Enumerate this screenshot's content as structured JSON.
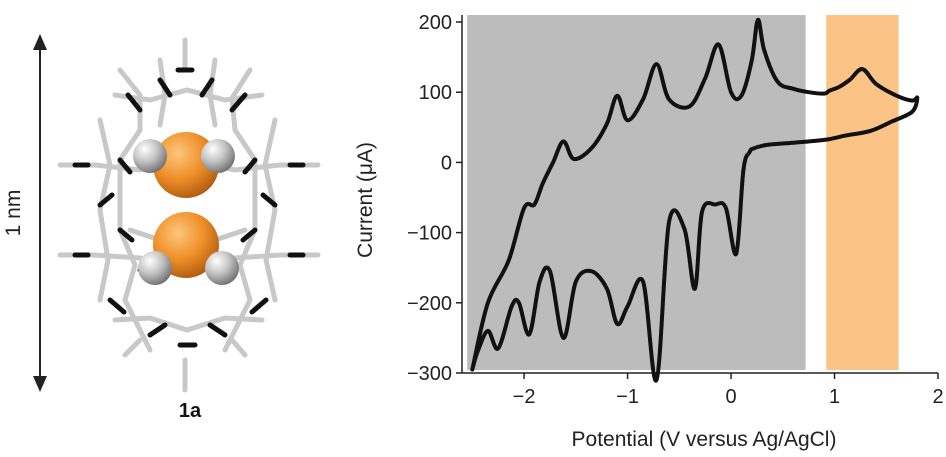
{
  "molecule": {
    "caption": "1a",
    "scale_label": "1 nm",
    "colors": {
      "metal": "#f0902a",
      "sphere": "#b8b8b8",
      "bond_dark": "#111111",
      "bond_light": "#c8c8c8"
    }
  },
  "chart_data": {
    "type": "line",
    "title": "",
    "xlabel": "Potential (V versus Ag/AgCl)",
    "ylabel": "Current (μA)",
    "xlim": [
      -2.6,
      2.0
    ],
    "ylim": [
      -300,
      210
    ],
    "xticks": [
      -2,
      -1,
      0,
      1,
      2
    ],
    "xtick_labels": [
      "−2",
      "−1",
      "0",
      "1",
      "2"
    ],
    "yticks": [
      -300,
      -200,
      -100,
      0,
      100,
      200
    ],
    "ytick_labels": [
      "−300",
      "−200",
      "−100",
      "0",
      "100",
      "200"
    ],
    "grid": false,
    "shaded_regions": [
      {
        "x": [
          -2.55,
          0.72
        ],
        "color": "#bcbcbc"
      },
      {
        "x": [
          0.92,
          1.62
        ],
        "color": "#fbc486"
      }
    ],
    "line_color": "#111111",
    "series": [
      {
        "values_desc": "cyclic voltammogram, closed loop",
        "x": [
          -2.5,
          -2.35,
          -2.15,
          -2.0,
          -1.9,
          -1.82,
          -1.72,
          -1.62,
          -1.52,
          -1.35,
          -1.2,
          -1.1,
          -1.0,
          -0.85,
          -0.72,
          -0.6,
          -0.4,
          -0.25,
          -0.12,
          0.0,
          0.1,
          0.2,
          0.26,
          0.32,
          0.45,
          0.6,
          0.75,
          0.9,
          0.95,
          1.05,
          1.15,
          1.27,
          1.4,
          1.6,
          1.75,
          1.8,
          1.75,
          1.55,
          1.35,
          1.1,
          0.9,
          0.6,
          0.35,
          0.22,
          0.18,
          0.12,
          0.05,
          -0.05,
          -0.15,
          -0.28,
          -0.35,
          -0.45,
          -0.6,
          -0.72,
          -0.85,
          -1.0,
          -1.1,
          -1.2,
          -1.35,
          -1.5,
          -1.62,
          -1.75,
          -1.85,
          -1.95,
          -2.05,
          -2.12,
          -2.25,
          -2.35,
          -2.45,
          -2.5
        ],
        "y": [
          -295,
          -200,
          -140,
          -65,
          -60,
          -30,
          0,
          30,
          5,
          20,
          55,
          95,
          60,
          90,
          140,
          90,
          80,
          120,
          168,
          100,
          95,
          145,
          203,
          160,
          115,
          105,
          100,
          98,
          102,
          108,
          118,
          133,
          112,
          95,
          88,
          92,
          72,
          58,
          45,
          38,
          32,
          28,
          25,
          20,
          15,
          -10,
          -130,
          -65,
          -60,
          -70,
          -180,
          -95,
          -85,
          -310,
          -170,
          -205,
          -230,
          -180,
          -155,
          -170,
          -250,
          -155,
          -170,
          -245,
          -200,
          -205,
          -265,
          -240,
          -270,
          -295
        ]
      }
    ]
  }
}
